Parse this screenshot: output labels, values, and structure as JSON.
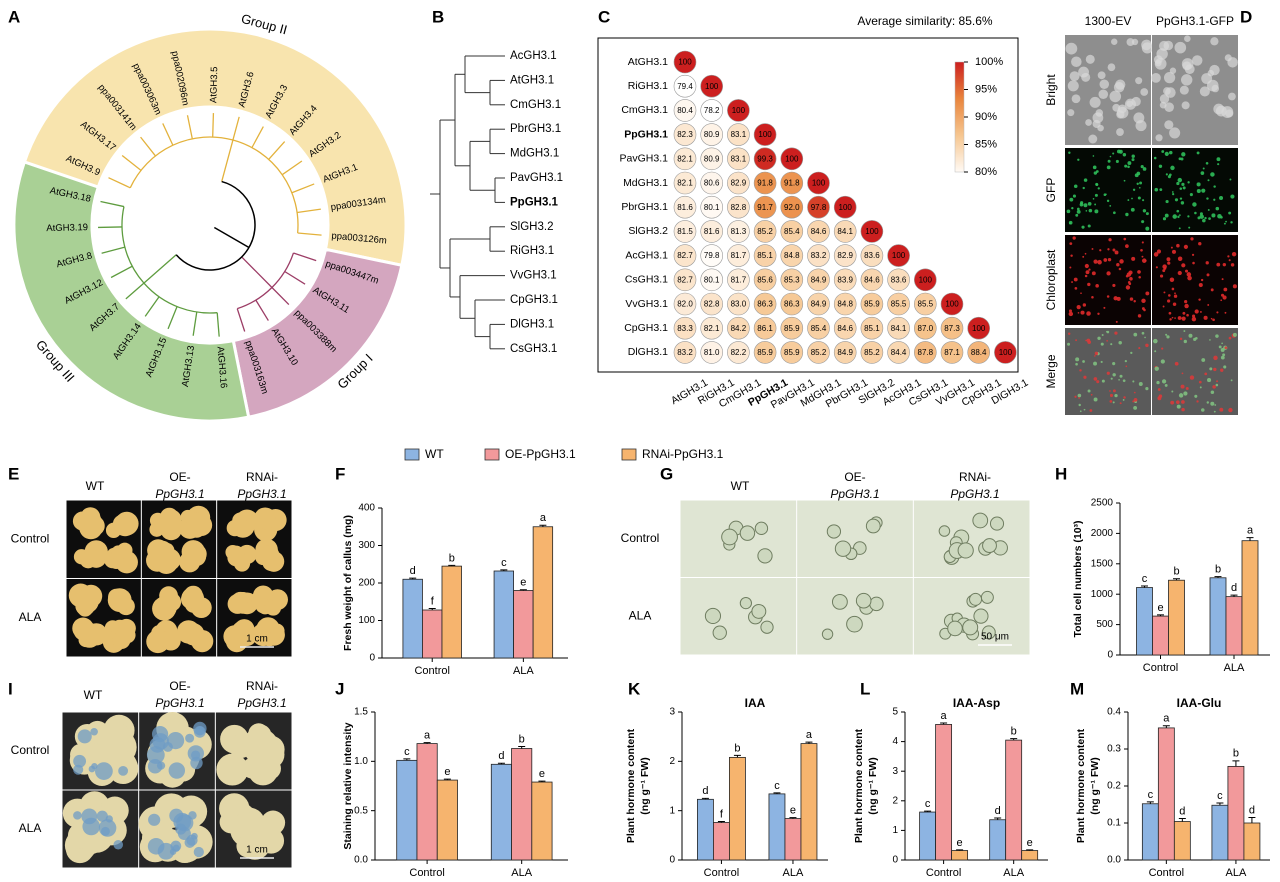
{
  "panel_labels": [
    "A",
    "B",
    "C",
    "D",
    "E",
    "F",
    "G",
    "H",
    "I",
    "J",
    "K",
    "L",
    "M"
  ],
  "phylogeny": {
    "groups": [
      {
        "name": "Group II",
        "color": "#f8e4ae",
        "branch_color": "#e3b23c",
        "leaves": [
          "AtGH3.9",
          "AtGH3.17",
          "ppa003141m",
          "ppa003063m",
          "ppa002096m",
          "AtGH3.5",
          "AtGH3.6",
          "AtGH3.3",
          "AtGH3.4",
          "AtGH3.2",
          "AtGH3.1",
          {
            "label": "ppa003134m",
            "color": "#d62728"
          },
          "ppa003126m"
        ]
      },
      {
        "name": "Group I",
        "color": "#d4a6bf",
        "branch_color": "#9c3d66",
        "leaves": [
          "ppa003447m",
          "AtGH3.11",
          "ppa003388m",
          "AtGH3.10",
          "ppa003163m"
        ]
      },
      {
        "name": "Group III",
        "color": "#a9d095",
        "branch_color": "#5e9c3f",
        "leaves": [
          "AtGH3.16",
          "AtGH3.13",
          "AtGH3.15",
          "AtGH3.14",
          "AtGH3.7",
          "AtGH3.12",
          "AtGH3.8",
          "AtGH3.19",
          "AtGH3.18"
        ]
      }
    ]
  },
  "gene_tree": {
    "leaves": [
      "AcGH3.1",
      "AtGH3.1",
      "CmGH3.1",
      "PbrGH3.1",
      "MdGH3.1",
      "PavGH3.1",
      {
        "label": "PpGH3.1",
        "color": "#d62728"
      },
      "SlGH3.2",
      "RiGH3.1",
      "VvGH3.1",
      "CpGH3.1",
      "DlGH3.1",
      "CsGH3.1"
    ]
  },
  "similarity": {
    "title": "Average similarity: 85.6%",
    "genes": [
      "AtGH3.1",
      "RiGH3.1",
      "CmGH3.1",
      {
        "label": "PpGH3.1",
        "color": "#d62728"
      },
      "PavGH3.1",
      "MdGH3.1",
      "PbrGH3.1",
      "SlGH3.2",
      "AcGH3.1",
      "CsGH3.1",
      "VvGH3.1",
      "CpGH3.1",
      "DlGH3.1"
    ],
    "values": [
      [
        100
      ],
      [
        79.4,
        100
      ],
      [
        80.4,
        78.2,
        100
      ],
      [
        82.3,
        80.9,
        83.1,
        100
      ],
      [
        82.1,
        80.9,
        83.1,
        99.3,
        100
      ],
      [
        82.1,
        80.6,
        82.9,
        91.8,
        91.8,
        100
      ],
      [
        81.6,
        80.1,
        82.8,
        91.7,
        92.0,
        97.8,
        100
      ],
      [
        81.5,
        81.6,
        81.3,
        85.2,
        85.4,
        84.6,
        84.1,
        100
      ],
      [
        82.7,
        79.8,
        81.7,
        85.1,
        84.8,
        83.2,
        82.9,
        83.6,
        100
      ],
      [
        82.7,
        80.1,
        81.7,
        85.6,
        85.3,
        84.9,
        83.9,
        84.6,
        83.6,
        100
      ],
      [
        82.0,
        82.8,
        83.0,
        86.3,
        86.3,
        84.9,
        84.8,
        85.9,
        85.5,
        85.5,
        100
      ],
      [
        83.3,
        82.1,
        84.2,
        86.1,
        85.9,
        85.4,
        84.6,
        85.1,
        84.1,
        87.0,
        87.3,
        100
      ],
      [
        83.2,
        81.0,
        82.2,
        85.9,
        85.9,
        85.2,
        84.9,
        85.2,
        84.4,
        87.8,
        87.1,
        88.4,
        100
      ]
    ],
    "value_labels": [
      [
        "100"
      ],
      [
        "79.4",
        "100"
      ],
      [
        "80.4",
        "78.2",
        "100"
      ],
      [
        "82.3",
        "80.9",
        "83.1",
        "100"
      ],
      [
        "82.1",
        "80.9",
        "83.1",
        "99.3",
        "100"
      ],
      [
        "82.1",
        "80.6",
        "82.9",
        "91.8",
        "91.8",
        "100"
      ],
      [
        "81.6",
        "80.1",
        "82.8",
        "91.7",
        "92.0",
        "97.8",
        "100"
      ],
      [
        "81.5",
        "81.6",
        "81.3",
        "85.2",
        "85.4",
        "84.6",
        "84.1",
        "100"
      ],
      [
        "82.7",
        "79.8",
        "81.7",
        "85.1",
        "84.8",
        "83.2",
        "82.9",
        "83.6",
        "100"
      ],
      [
        "82.7",
        "80.1",
        "81.7",
        "85.6",
        "85.3",
        "84.9",
        "83.9",
        "84.6",
        "83.6",
        "100"
      ],
      [
        "82.0",
        "82.8",
        "83.0",
        "86.3",
        "86.3",
        "84.9",
        "84.8",
        "85.9",
        "85.5",
        "85.5",
        "100"
      ],
      [
        "83.3",
        "82.1",
        "84.2",
        "86.1",
        "85.9",
        "85.4",
        "84.6",
        "85.1",
        "84.1",
        "87.0",
        "87.3",
        "100"
      ],
      [
        "83.2",
        "81.0",
        "82.2",
        "85.9",
        "85.9",
        "85.2",
        "84.9",
        "85.2",
        "84.4",
        "87.8",
        "87.1",
        "88.4",
        "100"
      ]
    ],
    "clim": [
      80,
      100
    ],
    "colorbar_ticks": [
      {
        "value": 100,
        "label": "100%"
      },
      {
        "value": 95,
        "label": "95%"
      },
      {
        "value": 90,
        "label": "90%"
      },
      {
        "value": 85,
        "label": "85%"
      },
      {
        "value": 80,
        "label": "80%"
      }
    ],
    "colors": [
      "#fffaf5",
      "#f6c690",
      "#e9853d",
      "#cc1f1f"
    ]
  },
  "microscopy": {
    "columns": [
      "1300-EV",
      "PpGH3.1-GFP"
    ],
    "rows": [
      "Bright",
      "GFP",
      "Chloroplast",
      "Merge"
    ]
  },
  "legend": [
    {
      "name": "WT",
      "color": "#8db4e2"
    },
    {
      "name": "OE-PpGH3.1",
      "color": "#f2999b"
    },
    {
      "name": "RNAi-PpGH3.1",
      "color": "#f6b46e"
    }
  ],
  "callus_photos": {
    "headers": [
      [
        "WT"
      ],
      [
        "OE-",
        "PpGH3.1"
      ],
      [
        "RNAi-",
        "PpGH3.1"
      ]
    ],
    "rows": [
      "Control",
      "ALA"
    ],
    "scale_bar": "1 cm"
  },
  "cell_photos": {
    "headers": [
      [
        "WT"
      ],
      [
        "OE-",
        "PpGH3.1"
      ],
      [
        "RNAi-",
        "PpGH3.1"
      ]
    ],
    "rows": [
      "Control",
      "ALA"
    ],
    "scale_bar": "50 μm"
  },
  "staining_photos": {
    "headers": [
      [
        "WT"
      ],
      [
        "OE-",
        "PpGH3.1"
      ],
      [
        "RNAi-",
        "PpGH3.1"
      ]
    ],
    "rows": [
      "Control",
      "ALA"
    ],
    "scale_bar": "1 cm"
  },
  "chart_data": [
    {
      "type": "bar",
      "ylabel": [
        "Fresh weight of callus (mg)"
      ],
      "categories": [
        "Control",
        "ALA"
      ],
      "ylim": [
        0,
        400
      ],
      "yticks": [
        0,
        100,
        200,
        300,
        400
      ],
      "series": [
        {
          "values": [
            210,
            232
          ],
          "errors": [
            3,
            3
          ],
          "letters": [
            "d",
            "c"
          ]
        },
        {
          "values": [
            128,
            180
          ],
          "errors": [
            4,
            2
          ],
          "letters": [
            "f",
            "e"
          ]
        },
        {
          "values": [
            245,
            350
          ],
          "errors": [
            2,
            4
          ],
          "letters": [
            "b",
            "a"
          ]
        }
      ]
    },
    {
      "type": "bar",
      "ylabel": [
        "Total cell numbers (10³)"
      ],
      "categories": [
        "Control",
        "ALA"
      ],
      "ylim": [
        0,
        2500
      ],
      "yticks": [
        0,
        500,
        1000,
        1500,
        2000,
        2500
      ],
      "series": [
        {
          "values": [
            1110,
            1270
          ],
          "errors": [
            25,
            20
          ],
          "letters": [
            "c",
            "b"
          ]
        },
        {
          "values": [
            640,
            960
          ],
          "errors": [
            20,
            25
          ],
          "letters": [
            "e",
            "d"
          ]
        },
        {
          "values": [
            1230,
            1880
          ],
          "errors": [
            25,
            50
          ],
          "letters": [
            "b",
            "a"
          ]
        }
      ]
    },
    {
      "type": "bar",
      "ylabel": [
        "Staining relative intensity"
      ],
      "categories": [
        "Control",
        "ALA"
      ],
      "ylim": [
        0,
        1.5
      ],
      "yticks": [
        {
          "value": 0,
          "label": "0.0"
        },
        {
          "value": 0.5,
          "label": "0.5"
        },
        {
          "value": 1,
          "label": "1.0"
        },
        {
          "value": 1.5,
          "label": "1.5"
        }
      ],
      "series": [
        {
          "values": [
            1.01,
            0.97
          ],
          "errors": [
            0.015,
            0.01
          ],
          "letters": [
            "c",
            "d"
          ]
        },
        {
          "values": [
            1.18,
            1.13
          ],
          "errors": [
            0.01,
            0.02
          ],
          "letters": [
            "a",
            "b"
          ]
        },
        {
          "values": [
            0.81,
            0.79
          ],
          "errors": [
            0.01,
            0.01
          ],
          "letters": [
            "e",
            "e"
          ]
        }
      ]
    },
    {
      "type": "bar",
      "title": "IAA",
      "ylabel": [
        "Plant hormone content",
        "(ng g⁻¹ FW)"
      ],
      "categories": [
        "Control",
        "ALA"
      ],
      "ylim": [
        0,
        3
      ],
      "yticks": [
        0,
        1,
        2,
        3
      ],
      "series": [
        {
          "values": [
            1.23,
            1.34
          ],
          "errors": [
            0.02,
            0.02
          ],
          "letters": [
            "d",
            "c"
          ]
        },
        {
          "values": [
            0.76,
            0.84
          ],
          "errors": [
            0.02,
            0.02
          ],
          "letters": [
            "f",
            "e"
          ]
        },
        {
          "values": [
            2.08,
            2.36
          ],
          "errors": [
            0.04,
            0.03
          ],
          "letters": [
            "b",
            "a"
          ]
        }
      ]
    },
    {
      "type": "bar",
      "title": "IAA-Asp",
      "ylabel": [
        "Plant hormone content",
        "(ng g⁻¹ FW)"
      ],
      "categories": [
        "Control",
        "ALA"
      ],
      "ylim": [
        0,
        5
      ],
      "yticks": [
        0,
        1,
        2,
        3,
        4,
        5
      ],
      "series": [
        {
          "values": [
            1.62,
            1.36
          ],
          "errors": [
            0.03,
            0.06
          ],
          "letters": [
            "c",
            "d"
          ]
        },
        {
          "values": [
            4.58,
            4.05
          ],
          "errors": [
            0.05,
            0.05
          ],
          "letters": [
            "a",
            "b"
          ]
        },
        {
          "values": [
            0.32,
            0.32
          ],
          "errors": [
            0.02,
            0.02
          ],
          "letters": [
            "e",
            "e"
          ]
        }
      ]
    },
    {
      "type": "bar",
      "title": "IAA-Glu",
      "ylabel": [
        "Plant hormone content",
        "(ng g⁻¹ FW)"
      ],
      "categories": [
        "Control",
        "ALA"
      ],
      "ylim": [
        0,
        0.4
      ],
      "yticks": [
        {
          "value": 0,
          "label": "0.0"
        },
        0.1,
        0.2,
        0.3,
        0.4
      ],
      "series": [
        {
          "values": [
            0.152,
            0.148
          ],
          "errors": [
            0.005,
            0.006
          ],
          "letters": [
            "c",
            "c"
          ]
        },
        {
          "values": [
            0.357,
            0.253
          ],
          "errors": [
            0.006,
            0.015
          ],
          "letters": [
            "a",
            "b"
          ]
        },
        {
          "values": [
            0.104,
            0.1
          ],
          "errors": [
            0.008,
            0.015
          ],
          "letters": [
            "d",
            "d"
          ]
        }
      ]
    }
  ]
}
